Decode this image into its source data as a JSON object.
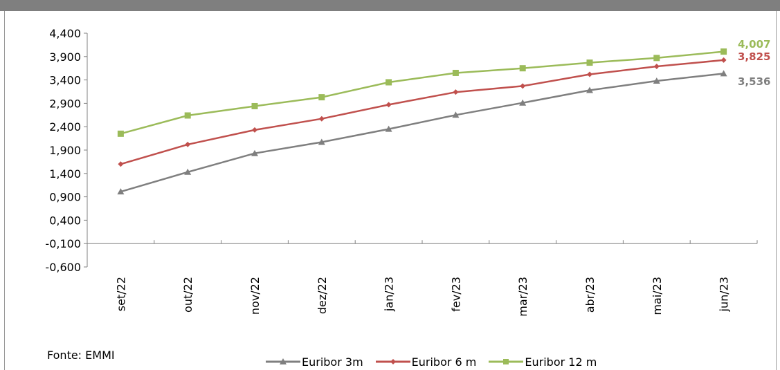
{
  "chart_data": {
    "type": "line",
    "categories": [
      "set/22",
      "out/22",
      "nov/22",
      "dez/22",
      "jan/23",
      "fev/23",
      "mar/23",
      "abr/23",
      "mai/23",
      "jun/23"
    ],
    "ylim": [
      -0.6,
      4.4
    ],
    "y_ticks": [
      "4,400",
      "3,900",
      "3,400",
      "2,900",
      "2,400",
      "1,900",
      "1,400",
      "0,900",
      "0,400",
      "-0,100",
      "-0,600"
    ],
    "y_tick_values": [
      4.4,
      3.9,
      3.4,
      2.9,
      2.4,
      1.9,
      1.4,
      0.9,
      0.4,
      -0.1,
      -0.6
    ],
    "x_axis_at": -0.1,
    "grid": false,
    "legend_position": "bottom",
    "series": [
      {
        "name": "Euribor 3m",
        "color": "#7f7f7f",
        "marker": "triangle",
        "values": [
          1.01,
          1.43,
          1.83,
          2.07,
          2.35,
          2.65,
          2.91,
          3.18,
          3.38,
          3.536
        ],
        "end_label": "3,536"
      },
      {
        "name": "Euribor 6 m",
        "color": "#c0504d",
        "marker": "diamond",
        "values": [
          1.6,
          2.02,
          2.33,
          2.57,
          2.87,
          3.14,
          3.27,
          3.52,
          3.69,
          3.825
        ],
        "end_label": "3,825"
      },
      {
        "name": "Euribor 12 m",
        "color": "#9bbb59",
        "marker": "square",
        "values": [
          2.25,
          2.64,
          2.84,
          3.03,
          3.35,
          3.55,
          3.65,
          3.77,
          3.87,
          4.007
        ],
        "end_label": "4,007"
      }
    ]
  },
  "source": "Fonte: EMMI"
}
